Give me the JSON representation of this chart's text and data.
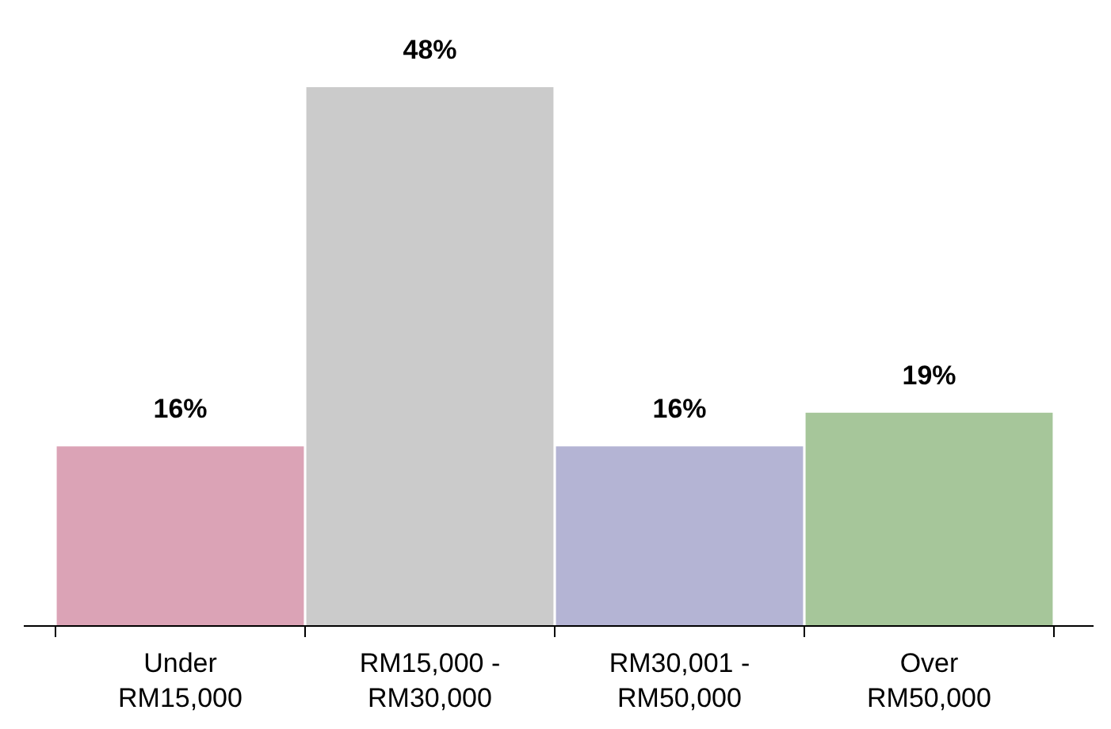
{
  "chart_data": {
    "type": "bar",
    "categories": [
      "Under\nRM15,000",
      "RM15,000 -\nRM30,000",
      "RM30,001 -\nRM50,000",
      "Over\nRM50,000"
    ],
    "values": [
      16,
      48,
      16,
      19
    ],
    "value_labels": [
      "16%",
      "48%",
      "16%",
      "19%"
    ],
    "colors": [
      "#dba3b6",
      "#cbcbcb",
      "#b4b4d4",
      "#a6c69a"
    ]
  }
}
